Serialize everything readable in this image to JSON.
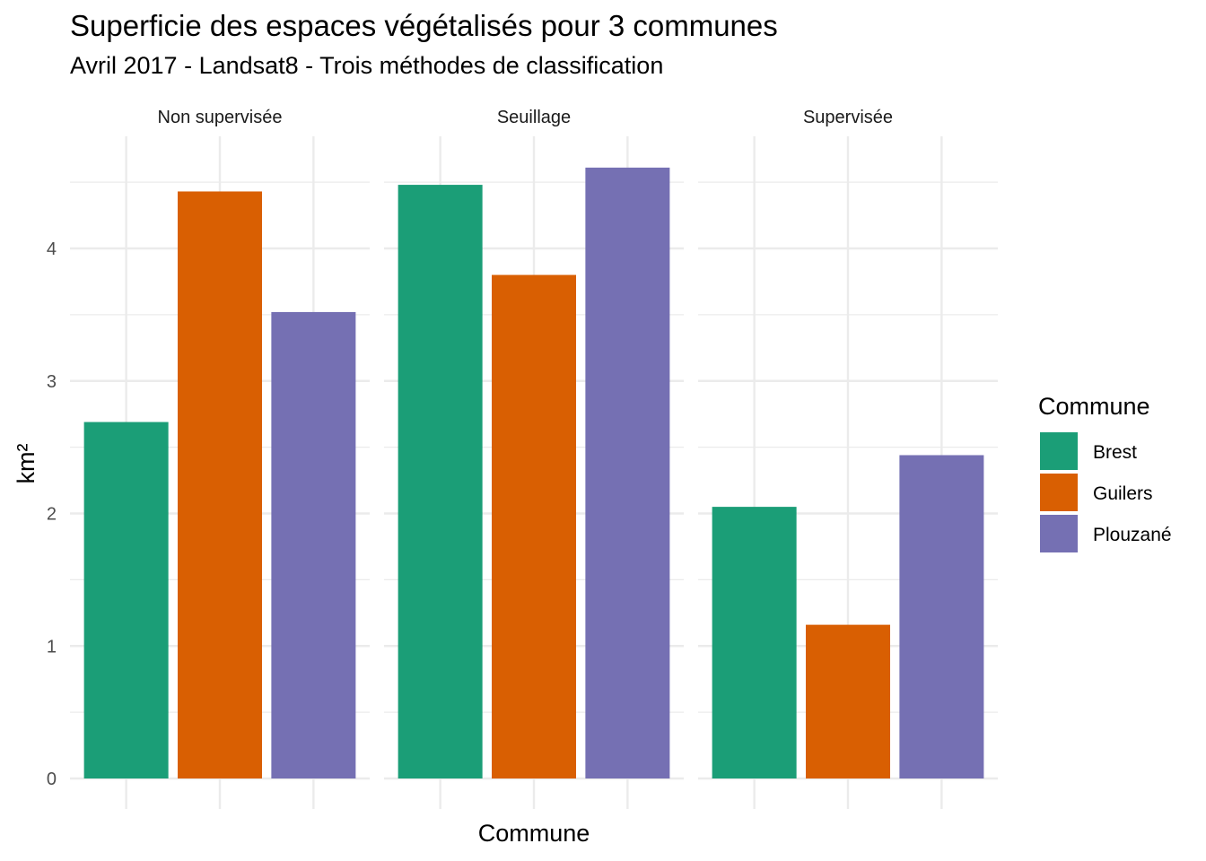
{
  "chart_data": {
    "type": "bar",
    "title": "Superficie des espaces végétalisés pour 3 communes",
    "subtitle": "Avril 2017 - Landsat8 - Trois méthodes de classification",
    "xlabel": "Commune",
    "ylabel": "km²",
    "ylim": [
      0,
      4.8
    ],
    "yticks": [
      0,
      1,
      2,
      3,
      4
    ],
    "grid": true,
    "categories": [
      "Brest",
      "Guilers",
      "Plouzané"
    ],
    "facets": [
      {
        "label": "Non supervisée",
        "values": [
          2.69,
          4.43,
          3.52
        ]
      },
      {
        "label": "Seuillage",
        "values": [
          4.48,
          3.8,
          4.61
        ]
      },
      {
        "label": "Supervisée",
        "values": [
          2.05,
          1.16,
          2.44
        ]
      }
    ],
    "legend": {
      "title": "Commune",
      "position": "right",
      "entries": [
        "Brest",
        "Guilers",
        "Plouzané"
      ]
    },
    "colors": {
      "Brest": "#1b9e77",
      "Guilers": "#d95f02",
      "Plouzané": "#7570b3",
      "grid": "#ebebeb",
      "axis_text": "#4d4d4d"
    }
  }
}
